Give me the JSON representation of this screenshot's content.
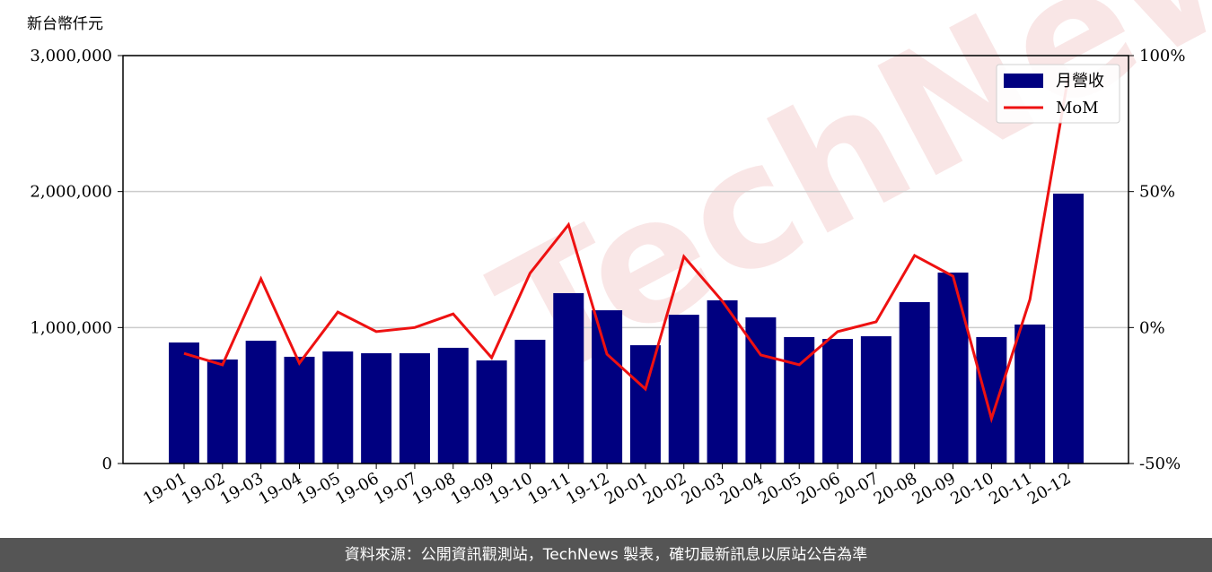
{
  "chart_data": {
    "type": "bar-line",
    "y_label": "新台幣仟元",
    "watermark": "TechNews",
    "footer": "資料來源：公開資訊觀測站，TechNews 製表，確切最新訊息以原站公告為準",
    "categories": [
      "19-01",
      "19-02",
      "19-03",
      "19-04",
      "19-05",
      "19-06",
      "19-07",
      "19-08",
      "19-09",
      "19-10",
      "19-11",
      "19-12",
      "20-01",
      "20-02",
      "20-03",
      "20-04",
      "20-05",
      "20-06",
      "20-07",
      "20-08",
      "20-09",
      "20-10",
      "20-11",
      "20-12"
    ],
    "series": [
      {
        "name": "月營收",
        "type": "bar",
        "color": "#000080",
        "values": [
          890000,
          765000,
          903000,
          785000,
          824000,
          811000,
          811000,
          851000,
          758000,
          910000,
          1253000,
          1127000,
          870000,
          1094000,
          1200000,
          1075000,
          930000,
          916000,
          936000,
          1187000,
          1404000,
          930000,
          1022000,
          1985000
        ]
      },
      {
        "name": "MoM",
        "type": "line",
        "axis": "y2",
        "color": "#ee1111",
        "values": [
          -9.5,
          -13.7,
          17.9,
          -13.1,
          5.7,
          -1.5,
          0,
          5.0,
          -11.1,
          20.0,
          37.8,
          -9.8,
          -22.6,
          26.1,
          9.7,
          -10.1,
          -13.7,
          -1.5,
          2.1,
          26.5,
          18.9,
          -33.5,
          10.3,
          92.4
        ]
      }
    ],
    "ylim": [
      0,
      3000000
    ],
    "yticks": [
      0,
      {
        "value": 1000000,
        "label": "1,000,000"
      },
      {
        "value": 2000000,
        "label": "2,000,000"
      },
      {
        "value": 3000000,
        "label": "3,000,000"
      }
    ],
    "y2lim": [
      -50,
      100
    ],
    "y2ticks": [
      {
        "value": -50,
        "label": "-50%"
      },
      {
        "value": 0,
        "label": "0%"
      },
      {
        "value": 50,
        "label": "50%"
      },
      {
        "value": 100,
        "label": "100%"
      }
    ],
    "grid": true,
    "legend": "upper right"
  }
}
